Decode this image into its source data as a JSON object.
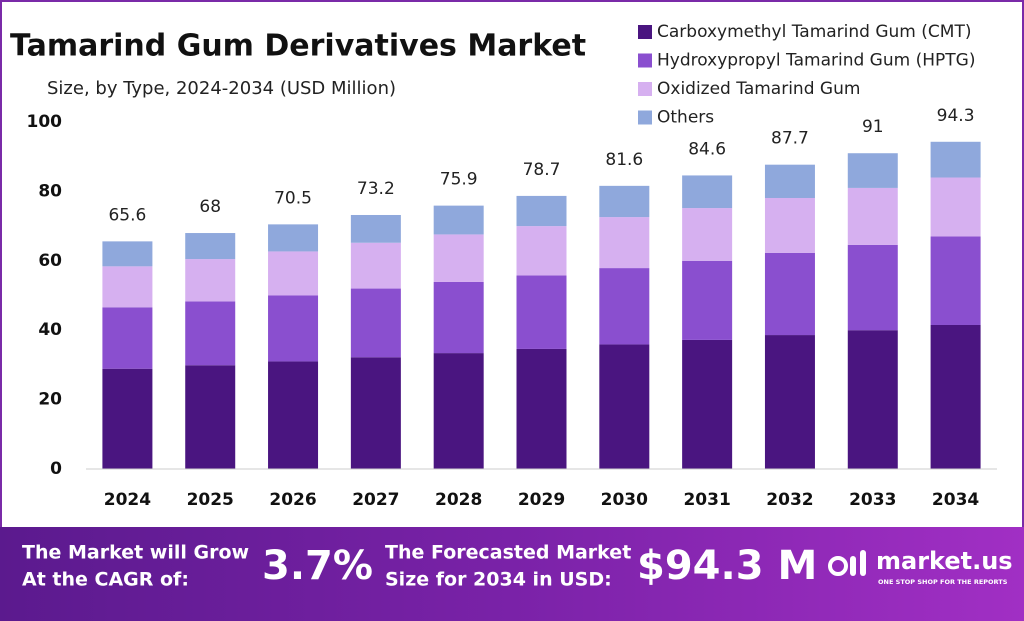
{
  "chart_data": {
    "type": "stacked_bar",
    "title": "Tamarind Gum Derivatives Market",
    "subtitle": "Size, by Type, 2024-2034 (USD Million)",
    "categories": [
      "2024",
      "2025",
      "2026",
      "2027",
      "2028",
      "2029",
      "2030",
      "2031",
      "2032",
      "2033",
      "2034"
    ],
    "series": [
      {
        "name": "Carboxymethyl Tamarind Gum (CMT)",
        "color": "#4a1580",
        "values": [
          28.9,
          29.9,
          31.0,
          32.2,
          33.4,
          34.6,
          35.9,
          37.2,
          38.6,
          40.0,
          41.5
        ]
      },
      {
        "name": "Hydroxypropyl Tamarind Gum (HPTG)",
        "color": "#8a4fcf",
        "values": [
          17.7,
          18.4,
          19.0,
          19.8,
          20.5,
          21.2,
          22.0,
          22.8,
          23.7,
          24.6,
          25.5
        ]
      },
      {
        "name": "Oxidized Tamarind Gum",
        "color": "#d6b0f0",
        "values": [
          11.8,
          12.2,
          12.7,
          13.2,
          13.7,
          14.2,
          14.7,
          15.2,
          15.8,
          16.4,
          17.0
        ]
      },
      {
        "name": "Others",
        "color": "#8fa8dc",
        "values": [
          7.2,
          7.5,
          7.8,
          8.0,
          8.3,
          8.7,
          9.0,
          9.4,
          9.6,
          10.0,
          10.3
        ]
      }
    ],
    "totals": [
      65.6,
      68.0,
      70.5,
      73.2,
      75.9,
      78.7,
      81.6,
      84.6,
      87.7,
      91.0,
      94.3
    ],
    "ylim": [
      0,
      100
    ],
    "yticks": [
      0,
      20,
      40,
      60,
      80,
      100
    ],
    "grid": false
  },
  "footer": {
    "cagr_label": [
      "The Market will Grow",
      "At the CAGR of:"
    ],
    "cagr": "3.7%",
    "forecast_label": [
      "The Forecasted Market",
      "Size for 2034 in USD:"
    ],
    "forecast": "$94.3 M",
    "brand": "market.us",
    "tagline": "ONE STOP SHOP FOR THE REPORTS"
  }
}
